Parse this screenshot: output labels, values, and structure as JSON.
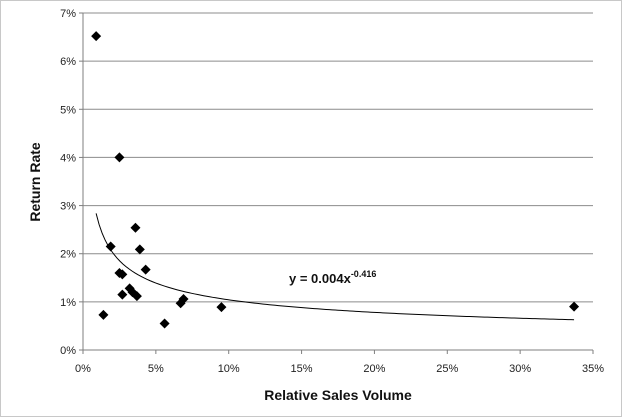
{
  "chart_data": {
    "type": "scatter",
    "title": "",
    "xlabel": "Relative Sales Volume",
    "ylabel": "Return Rate",
    "xlim": [
      0,
      0.35
    ],
    "ylim": [
      0,
      0.07
    ],
    "x_ticks": [
      0,
      0.05,
      0.1,
      0.15,
      0.2,
      0.25,
      0.3,
      0.35
    ],
    "x_tick_labels": [
      "0%",
      "5%",
      "10%",
      "15%",
      "20%",
      "25%",
      "30%",
      "35%"
    ],
    "y_ticks": [
      0,
      0.01,
      0.02,
      0.03,
      0.04,
      0.05,
      0.06,
      0.07
    ],
    "y_tick_labels": [
      "0%",
      "1%",
      "2%",
      "3%",
      "4%",
      "5%",
      "6%",
      "7%"
    ],
    "grid": "horizontal",
    "marker": "diamond",
    "marker_color": "#000000",
    "series": [
      {
        "points": [
          {
            "x": 0.009,
            "y": 0.0652
          },
          {
            "x": 0.014,
            "y": 0.0073
          },
          {
            "x": 0.019,
            "y": 0.0215
          },
          {
            "x": 0.025,
            "y": 0.04
          },
          {
            "x": 0.025,
            "y": 0.016
          },
          {
            "x": 0.027,
            "y": 0.0157
          },
          {
            "x": 0.027,
            "y": 0.0115
          },
          {
            "x": 0.032,
            "y": 0.0128
          },
          {
            "x": 0.034,
            "y": 0.012
          },
          {
            "x": 0.036,
            "y": 0.0254
          },
          {
            "x": 0.037,
            "y": 0.0112
          },
          {
            "x": 0.039,
            "y": 0.0209
          },
          {
            "x": 0.043,
            "y": 0.0167
          },
          {
            "x": 0.056,
            "y": 0.0055
          },
          {
            "x": 0.067,
            "y": 0.0097
          },
          {
            "x": 0.069,
            "y": 0.0106
          },
          {
            "x": 0.095,
            "y": 0.0089
          },
          {
            "x": 0.337,
            "y": 0.009
          }
        ]
      }
    ],
    "trendline": {
      "type": "power",
      "coefficient": 0.004,
      "exponent": -0.416,
      "x_range": [
        0.009,
        0.337
      ],
      "equation_base": "y = 0.004x",
      "equation_exponent": "-0.416"
    }
  }
}
